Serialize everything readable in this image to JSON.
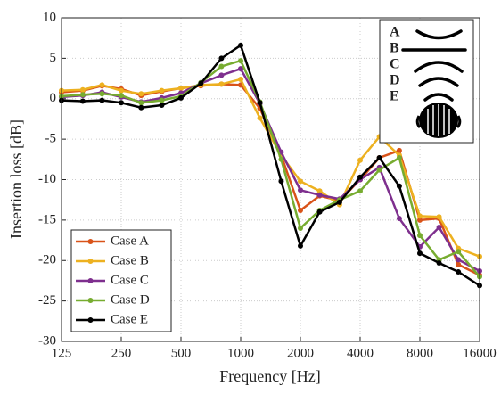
{
  "chart_data": {
    "type": "line",
    "xlabel": "Frequency [Hz]",
    "ylabel": "Insertion loss [dB]",
    "x": [
      125,
      160,
      200,
      250,
      315,
      400,
      500,
      630,
      800,
      1000,
      1250,
      1600,
      2000,
      2500,
      3150,
      4000,
      5000,
      6300,
      8000,
      10000,
      12500,
      16000
    ],
    "xscale": "log",
    "xlim": [
      125,
      16000
    ],
    "xticks": [
      125,
      250,
      500,
      1000,
      2000,
      4000,
      8000,
      16000
    ],
    "ylim": [
      -30,
      10
    ],
    "yticks": [
      -30,
      -25,
      -20,
      -15,
      -10,
      -5,
      0,
      5,
      10
    ],
    "grid": true,
    "legend": "lower left",
    "annotations": [
      "A",
      "B",
      "C",
      "D",
      "E"
    ],
    "series": [
      {
        "name": "Case A",
        "color": "#D95319",
        "values": [
          0.8,
          1.0,
          1.6,
          1.2,
          0.4,
          0.9,
          1.3,
          1.6,
          1.8,
          1.7,
          -1.2,
          -7.0,
          -13.8,
          -12.0,
          -12.6,
          -10.0,
          -7.3,
          -6.4,
          -15.0,
          -14.8,
          -20.5,
          -21.8
        ]
      },
      {
        "name": "Case B",
        "color": "#EDB120",
        "values": [
          1.0,
          1.1,
          1.7,
          1.0,
          0.6,
          1.0,
          1.3,
          1.7,
          1.8,
          2.4,
          -2.4,
          -7.0,
          -10.2,
          -11.4,
          -13.1,
          -7.6,
          -4.7,
          -7.0,
          -14.5,
          -14.6,
          -18.5,
          -19.5
        ]
      },
      {
        "name": "Case C",
        "color": "#7E2F8E",
        "values": [
          0.2,
          0.4,
          0.8,
          0.2,
          -0.4,
          0.1,
          0.7,
          1.9,
          2.9,
          3.7,
          -0.6,
          -6.6,
          -11.3,
          -11.9,
          -12.4,
          -10.0,
          -8.5,
          -14.8,
          -18.3,
          -15.9,
          -19.9,
          -21.3
        ]
      },
      {
        "name": "Case D",
        "color": "#77AC30",
        "values": [
          0.3,
          0.5,
          0.6,
          0.4,
          -0.5,
          -0.2,
          0.3,
          2.0,
          4.0,
          4.7,
          -0.4,
          -7.5,
          -16.0,
          -13.8,
          -12.5,
          -11.4,
          -8.8,
          -7.3,
          -16.9,
          -19.9,
          -18.9,
          -22.0
        ]
      },
      {
        "name": "Case E",
        "color": "#000000",
        "values": [
          -0.2,
          -0.3,
          -0.2,
          -0.5,
          -1.1,
          -0.8,
          0.1,
          1.9,
          5.0,
          6.6,
          -0.5,
          -10.2,
          -18.2,
          -14.0,
          -12.8,
          -9.7,
          -7.3,
          -10.8,
          -19.1,
          -20.3,
          -21.4,
          -23.1
        ]
      }
    ]
  }
}
